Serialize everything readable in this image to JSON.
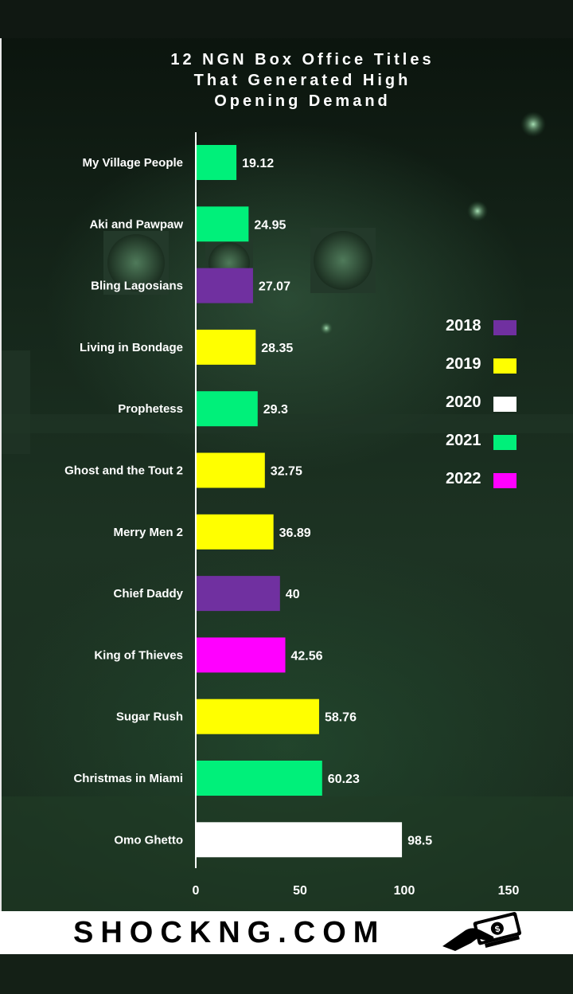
{
  "chart_data": {
    "type": "bar",
    "orientation": "horizontal",
    "title": "12 NGN Box Office Titles\nThat Generated High\nOpening Demand",
    "categories": [
      "My Village People",
      "Aki and Pawpaw",
      "Bling Lagosians",
      "Living in Bondage",
      "Prophetess",
      "Ghost and the Tout 2",
      "Merry Men 2",
      "Chief Daddy",
      "King of Thieves",
      "Sugar Rush",
      "Christmas in Miami",
      "Omo Ghetto"
    ],
    "values": [
      19.12,
      24.95,
      27.07,
      28.35,
      29.3,
      32.75,
      36.89,
      40,
      42.56,
      58.76,
      60.23,
      98.5
    ],
    "value_labels": [
      "19.12",
      "24.95",
      "27.07",
      "28.35",
      "29.3",
      "32.75",
      "36.89",
      "40",
      "42.56",
      "58.76",
      "60.23",
      "98.5"
    ],
    "years": [
      "2021",
      "2021",
      "2018",
      "2019",
      "2021",
      "2019",
      "2019",
      "2018",
      "2022",
      "2019",
      "2021",
      "2020"
    ],
    "xlim": [
      0,
      150
    ],
    "xticks": [
      "0",
      "50",
      "100",
      "150"
    ],
    "legend": [
      {
        "label": "2018",
        "color": "#7030a0"
      },
      {
        "label": "2019",
        "color": "#ffff00"
      },
      {
        "label": "2020",
        "color": "#ffffff"
      },
      {
        "label": "2021",
        "color": "#00f07a"
      },
      {
        "label": "2022",
        "color": "#ff00ff"
      }
    ],
    "legend_position": "right",
    "grid": false,
    "xlabel": "",
    "ylabel": ""
  },
  "brand": {
    "text": "SHOCKNG.COM",
    "icon": "money-hand-icon"
  }
}
